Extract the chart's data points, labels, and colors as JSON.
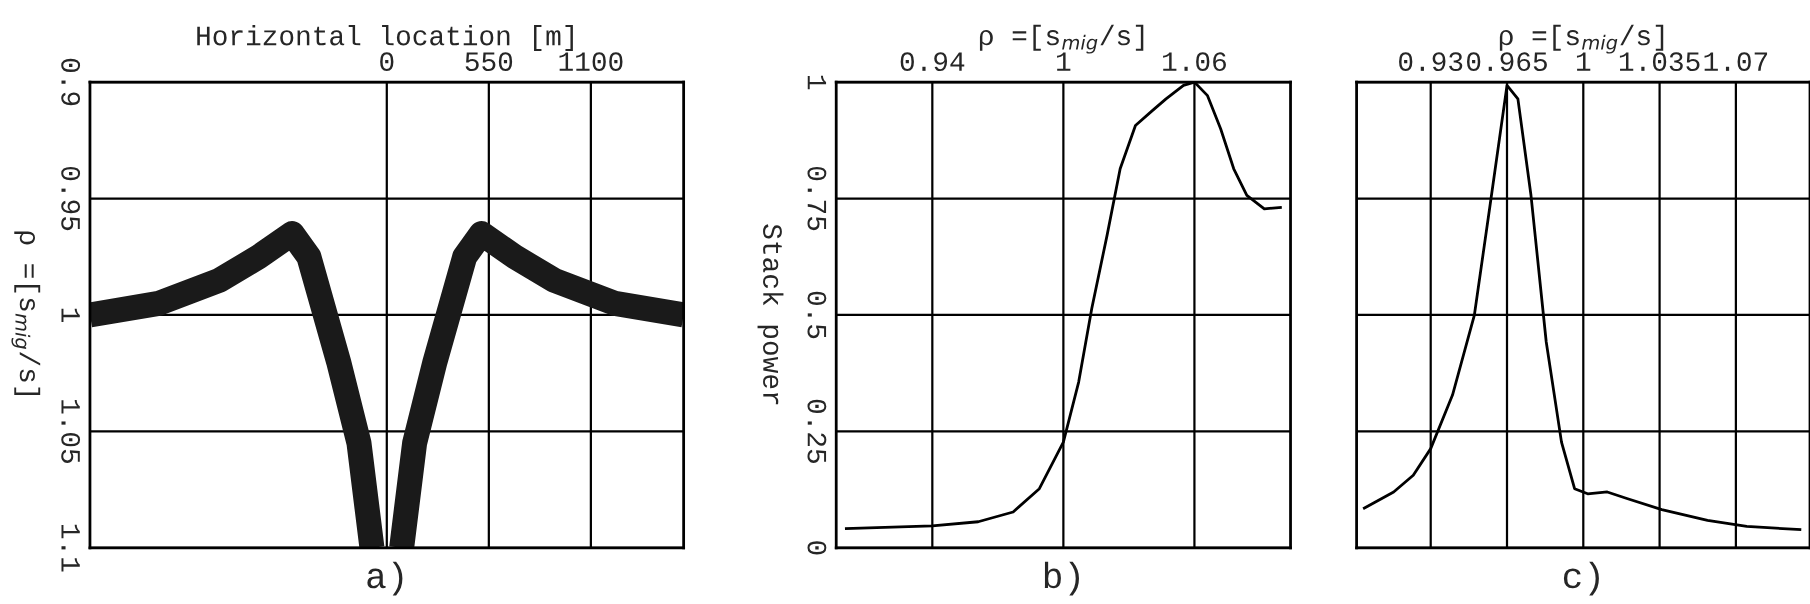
{
  "chart_data": [
    {
      "type": "line",
      "xlabel": "Horizontal location [m]",
      "ylabel": "ρ =[s$_{mig}$/s]",
      "annotations": [
        "a)"
      ],
      "xlim": [
        -1600,
        1600
      ],
      "ylim": [
        1.1,
        0.9
      ],
      "xticks": [
        0,
        550,
        1100
      ],
      "yticks": [
        0.9,
        0.95,
        1,
        1.05,
        1.1
      ],
      "grid": true,
      "x": [
        -1600,
        -1230,
        -900,
        -690,
        -510,
        -420,
        -260,
        -150,
        -80,
        0,
        80,
        150,
        260,
        420,
        510,
        690,
        900,
        1230,
        1600
      ],
      "series": [
        {
          "color": "#1a1a1a",
          "values": [
            1.0,
            0.995,
            0.985,
            0.975,
            0.965,
            0.975,
            1.02,
            1.055,
            1.1,
            null,
            1.1,
            1.055,
            1.02,
            0.975,
            0.965,
            0.975,
            0.985,
            0.995,
            1.0
          ]
        }
      ]
    },
    {
      "type": "line",
      "xlabel": "ρ =[s$_{mig}$/s]",
      "ylabel": "Stack power",
      "annotations": [
        "b)"
      ],
      "xlim": [
        0.896,
        1.104
      ],
      "ylim": [
        0,
        1
      ],
      "xticks": [
        0.94,
        1,
        1.06
      ],
      "yticks": [
        0,
        0.25,
        0.5,
        0.75,
        1
      ],
      "grid": true,
      "x": [
        0.9,
        0.94,
        0.961,
        0.977,
        0.989,
        1.0,
        1.007,
        1.013,
        1.02,
        1.026,
        1.033,
        1.041,
        1.047,
        1.055,
        1.06,
        1.066,
        1.072,
        1.078,
        1.084,
        1.092,
        1.1
      ],
      "series": [
        {
          "color": "#000000",
          "values": [
            0.041,
            0.047,
            0.056,
            0.077,
            0.127,
            0.227,
            0.356,
            0.514,
            0.671,
            0.814,
            0.907,
            0.94,
            0.964,
            0.993,
            1.0,
            0.971,
            0.9,
            0.814,
            0.757,
            0.728,
            0.731
          ]
        }
      ]
    },
    {
      "type": "line",
      "xlabel": "ρ =[s$_{mig}$/s]",
      "annotations": [
        "c)"
      ],
      "xlim": [
        0.896,
        1.104
      ],
      "ylim": [
        0,
        1
      ],
      "xticks": [
        0.93,
        0.965,
        1,
        1.035,
        1.07
      ],
      "yticks": [
        0,
        0.25,
        0.5,
        0.75,
        1
      ],
      "grid": true,
      "tick_labels": "x",
      "x": [
        0.899,
        0.913,
        0.922,
        0.93,
        0.94,
        0.95,
        0.957,
        0.965,
        0.97,
        0.976,
        0.983,
        0.99,
        0.996,
        1.002,
        1.011,
        1.02,
        1.036,
        1.057,
        1.075,
        1.1
      ],
      "series": [
        {
          "color": "#000000",
          "values": [
            0.084,
            0.12,
            0.156,
            0.213,
            0.328,
            0.499,
            0.728,
            0.993,
            0.964,
            0.757,
            0.442,
            0.227,
            0.127,
            0.116,
            0.12,
            0.106,
            0.082,
            0.059,
            0.046,
            0.039
          ]
        }
      ]
    }
  ]
}
